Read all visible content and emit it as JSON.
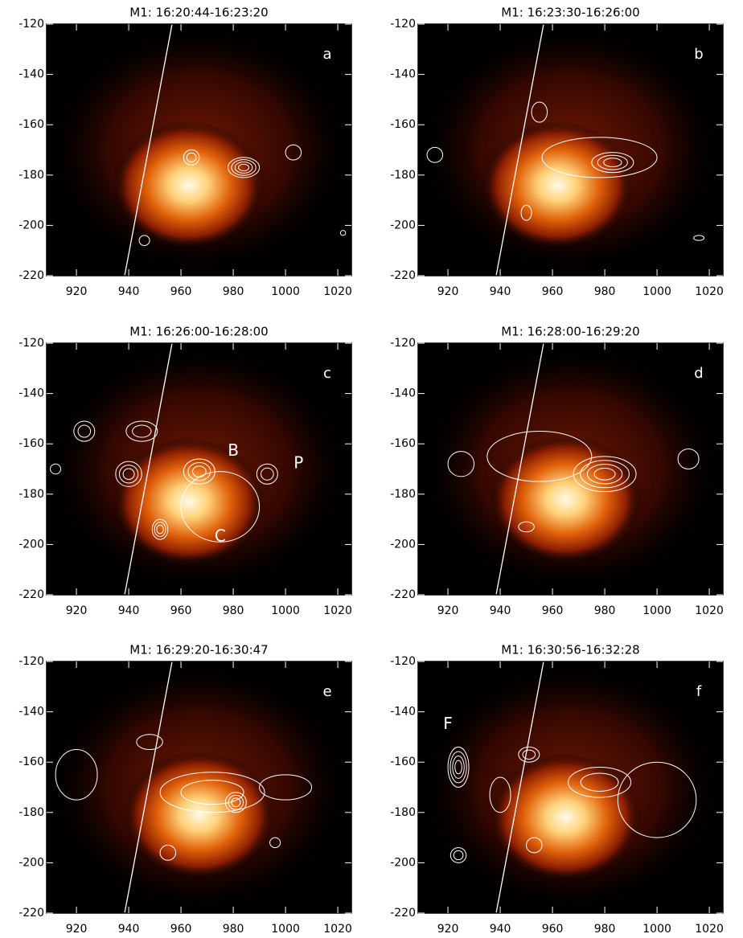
{
  "chart_data": [
    {
      "type": "image",
      "title": "M1: 16:20:44-16:23:20",
      "panel_label": "a",
      "xlim": [
        908.6,
        1025.2
      ],
      "ylim": [
        -220,
        -120
      ],
      "xticks": [
        920,
        940,
        960,
        980,
        1000,
        1020
      ],
      "yticks": [
        -120,
        -140,
        -160,
        -180,
        -200,
        -220
      ],
      "source": {
        "x": 963,
        "y": -184
      },
      "contours": [
        {
          "x": 964,
          "y": -173,
          "rx": 3,
          "ry": 3,
          "levels": 2
        },
        {
          "x": 984,
          "y": -177,
          "rx": 6,
          "ry": 4,
          "levels": 4
        },
        {
          "x": 1003,
          "y": -171,
          "rx": 3,
          "ry": 3,
          "levels": 1
        },
        {
          "x": 946,
          "y": -206,
          "rx": 2,
          "ry": 2,
          "levels": 1
        },
        {
          "x": 1022,
          "y": -203,
          "rx": 1,
          "ry": 1,
          "levels": 1
        }
      ],
      "annotations": []
    },
    {
      "type": "image",
      "title": "M1: 16:23:30-16:26:00",
      "panel_label": "b",
      "xlim": [
        908.6,
        1025.2
      ],
      "ylim": [
        -220,
        -120
      ],
      "xticks": [
        920,
        940,
        960,
        980,
        1000,
        1020
      ],
      "yticks": [
        -120,
        -140,
        -160,
        -180,
        -200,
        -220
      ],
      "source": {
        "x": 962,
        "y": -184
      },
      "contours": [
        {
          "x": 978,
          "y": -173,
          "rx": 22,
          "ry": 8,
          "levels": 1
        },
        {
          "x": 983,
          "y": -175,
          "rx": 8,
          "ry": 4,
          "levels": 3
        },
        {
          "x": 955,
          "y": -155,
          "rx": 3,
          "ry": 4,
          "levels": 1
        },
        {
          "x": 1016,
          "y": -205,
          "rx": 2,
          "ry": 1,
          "levels": 1
        },
        {
          "x": 950,
          "y": -195,
          "rx": 2,
          "ry": 3,
          "levels": 1
        },
        {
          "x": 915,
          "y": -172,
          "rx": 3,
          "ry": 3,
          "levels": 1
        }
      ],
      "annotations": []
    },
    {
      "type": "image",
      "title": "M1: 16:26:00-16:28:00",
      "panel_label": "c",
      "xlim": [
        908.6,
        1025.2
      ],
      "ylim": [
        -220,
        -120
      ],
      "xticks": [
        920,
        940,
        960,
        980,
        1000,
        1020
      ],
      "yticks": [
        -120,
        -140,
        -160,
        -180,
        -200,
        -220
      ],
      "source": {
        "x": 963,
        "y": -183
      },
      "contours": [
        {
          "x": 923,
          "y": -155,
          "rx": 4,
          "ry": 4,
          "levels": 2
        },
        {
          "x": 945,
          "y": -155,
          "rx": 6,
          "ry": 4,
          "levels": 2
        },
        {
          "x": 940,
          "y": -172,
          "rx": 5,
          "ry": 5,
          "levels": 3
        },
        {
          "x": 967,
          "y": -171,
          "rx": 6,
          "ry": 5,
          "levels": 3
        },
        {
          "x": 993,
          "y": -172,
          "rx": 4,
          "ry": 4,
          "levels": 2
        },
        {
          "x": 952,
          "y": -194,
          "rx": 3,
          "ry": 4,
          "levels": 3
        },
        {
          "x": 975,
          "y": -185,
          "rx": 15,
          "ry": 14,
          "levels": 1
        },
        {
          "x": 912,
          "y": -170,
          "rx": 2,
          "ry": 2,
          "levels": 1
        }
      ],
      "annotations": [
        {
          "text": "B",
          "x": 980,
          "y": -163
        },
        {
          "text": "P",
          "x": 1005,
          "y": -168
        },
        {
          "text": "C",
          "x": 975,
          "y": -197
        }
      ]
    },
    {
      "type": "image",
      "title": "M1: 16:28:00-16:29:20",
      "panel_label": "d",
      "xlim": [
        908.6,
        1025.2
      ],
      "ylim": [
        -220,
        -120
      ],
      "xticks": [
        920,
        940,
        960,
        980,
        1000,
        1020
      ],
      "yticks": [
        -120,
        -140,
        -160,
        -180,
        -200,
        -220
      ],
      "source": {
        "x": 965,
        "y": -182
      },
      "contours": [
        {
          "x": 980,
          "y": -172,
          "rx": 12,
          "ry": 7,
          "levels": 4
        },
        {
          "x": 1012,
          "y": -166,
          "rx": 4,
          "ry": 4,
          "levels": 1
        },
        {
          "x": 955,
          "y": -165,
          "rx": 20,
          "ry": 10,
          "levels": 1
        },
        {
          "x": 925,
          "y": -168,
          "rx": 5,
          "ry": 5,
          "levels": 1
        },
        {
          "x": 950,
          "y": -193,
          "rx": 3,
          "ry": 2,
          "levels": 1
        }
      ],
      "annotations": []
    },
    {
      "type": "image",
      "title": "M1: 16:29:20-16:30:47",
      "panel_label": "e",
      "xlim": [
        908.6,
        1025.2
      ],
      "ylim": [
        -220,
        -120
      ],
      "xticks": [
        920,
        940,
        960,
        980,
        1000,
        1020
      ],
      "yticks": [
        -120,
        -140,
        -160,
        -180,
        -200,
        -220
      ],
      "source": {
        "x": 967,
        "y": -181
      },
      "contours": [
        {
          "x": 920,
          "y": -165,
          "rx": 8,
          "ry": 10,
          "levels": 1
        },
        {
          "x": 972,
          "y": -172,
          "rx": 20,
          "ry": 8,
          "levels": 2
        },
        {
          "x": 981,
          "y": -176,
          "rx": 4,
          "ry": 4,
          "levels": 3
        },
        {
          "x": 1000,
          "y": -170,
          "rx": 10,
          "ry": 5,
          "levels": 1
        },
        {
          "x": 955,
          "y": -196,
          "rx": 3,
          "ry": 3,
          "levels": 1
        },
        {
          "x": 996,
          "y": -192,
          "rx": 2,
          "ry": 2,
          "levels": 1
        },
        {
          "x": 948,
          "y": -152,
          "rx": 5,
          "ry": 3,
          "levels": 1
        }
      ],
      "annotations": []
    },
    {
      "type": "image",
      "title": "M1: 16:30:56-16:32:28",
      "panel_label": "f",
      "xlim": [
        908.6,
        1025.2
      ],
      "ylim": [
        -220,
        -120
      ],
      "xticks": [
        920,
        940,
        960,
        980,
        1000,
        1020
      ],
      "yticks": [
        -120,
        -140,
        -160,
        -180,
        -200,
        -220
      ],
      "source": {
        "x": 965,
        "y": -182
      },
      "contours": [
        {
          "x": 924,
          "y": -162,
          "rx": 4,
          "ry": 8,
          "levels": 4
        },
        {
          "x": 924,
          "y": -197,
          "rx": 3,
          "ry": 3,
          "levels": 2
        },
        {
          "x": 951,
          "y": -157,
          "rx": 4,
          "ry": 3,
          "levels": 2
        },
        {
          "x": 940,
          "y": -173,
          "rx": 4,
          "ry": 7,
          "levels": 1
        },
        {
          "x": 978,
          "y": -168,
          "rx": 12,
          "ry": 6,
          "levels": 2
        },
        {
          "x": 1000,
          "y": -175,
          "rx": 15,
          "ry": 15,
          "levels": 1
        },
        {
          "x": 953,
          "y": -193,
          "rx": 3,
          "ry": 3,
          "levels": 1
        }
      ],
      "annotations": [
        {
          "text": "F",
          "x": 920,
          "y": -145
        }
      ]
    }
  ]
}
